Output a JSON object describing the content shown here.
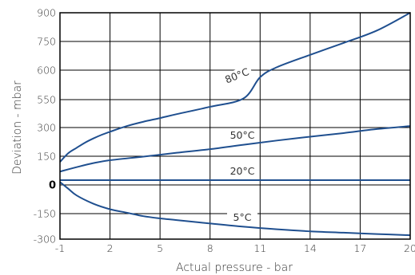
{
  "chart_data": {
    "type": "line",
    "title": "",
    "xlabel": "Actual pressure - bar",
    "ylabel": "Deviation - mbar",
    "xlim": [
      -1,
      20
    ],
    "ylim": [
      -300,
      900
    ],
    "x_ticks": [
      -1,
      2,
      5,
      8,
      11,
      14,
      17,
      20
    ],
    "x_tick_labels": [
      "-1",
      "2",
      "5",
      "8",
      "11",
      "14",
      "17",
      "20"
    ],
    "y_ticks": [
      900,
      750,
      600,
      550,
      300,
      150,
      0,
      -150,
      -300
    ],
    "y_tick_labels": [
      "900",
      "750",
      "600",
      "550",
      "300",
      "150",
      "0",
      "-150",
      "-300"
    ],
    "grid": true,
    "legend": "none",
    "line_color": "#1f4f8f",
    "series": [
      {
        "name": "80°C",
        "x": [
          -1,
          -0.5,
          0,
          0.5,
          1,
          1.5,
          2,
          3,
          4,
          5,
          6,
          8,
          10,
          11,
          12,
          14,
          16,
          18,
          20
        ],
        "y": [
          120,
          166,
          194,
          221,
          243,
          262,
          278,
          313,
          352,
          385,
          420,
          486,
          552,
          588,
          615,
          680,
          742,
          807,
          900
        ]
      },
      {
        "name": "50°C",
        "x": [
          -1,
          0,
          1,
          2,
          4,
          6,
          8,
          10,
          12,
          14,
          16,
          18,
          20
        ],
        "y": [
          70,
          93,
          114,
          129,
          148,
          168,
          187,
          210,
          232,
          252,
          271,
          292,
          313
        ]
      },
      {
        "name": "20°C",
        "x": [
          -1,
          20
        ],
        "y": [
          25,
          25
        ]
      },
      {
        "name": "5°C",
        "x": [
          -1,
          -0.5,
          0,
          1,
          2,
          3,
          4,
          5,
          6,
          8,
          10,
          12,
          14,
          16,
          18,
          20
        ],
        "y": [
          15,
          -20,
          -55,
          -98,
          -127,
          -145,
          -165,
          -178,
          -188,
          -208,
          -227,
          -242,
          -254,
          -262,
          -270,
          -277
        ]
      }
    ],
    "series_labels": [
      "80°C",
      "50°C",
      "20°C",
      "5°C"
    ]
  }
}
